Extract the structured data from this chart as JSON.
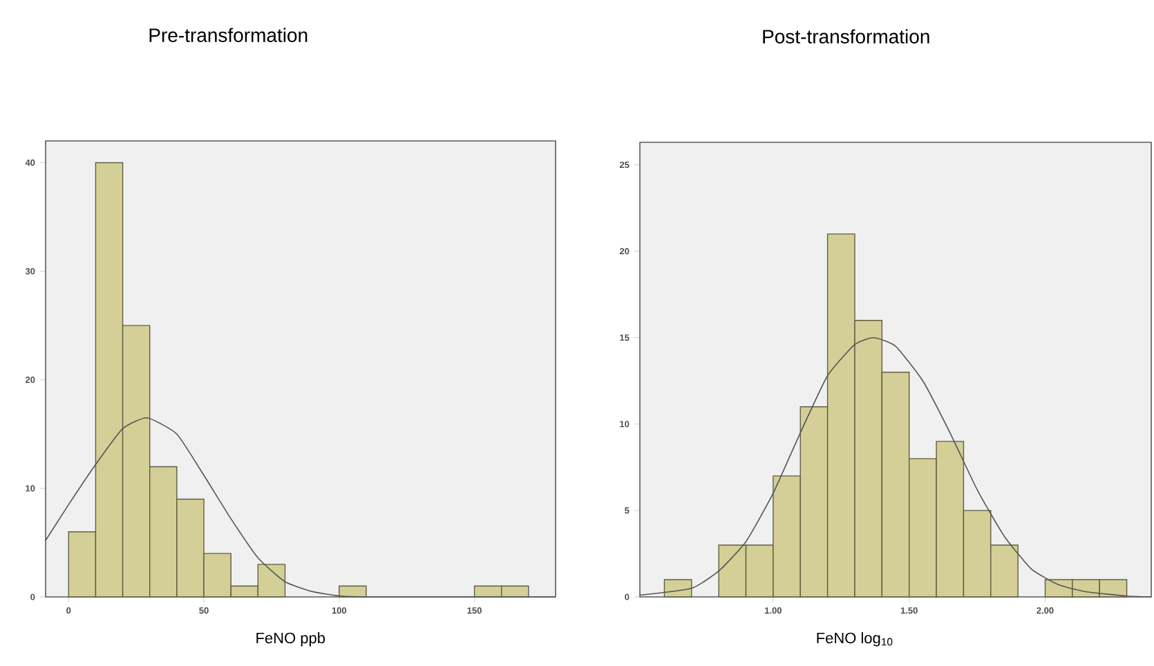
{
  "chart_data": [
    {
      "type": "histogram",
      "title": "Pre-transformation",
      "xlabel": "FeNO ppb",
      "xlim": [
        -8.5,
        180
      ],
      "ylim": [
        0,
        42
      ],
      "xticks": [
        0,
        50,
        100,
        150
      ],
      "yticks": [
        0,
        10,
        20,
        30,
        40
      ],
      "series": [
        {
          "color": "#d3cf96",
          "bins": [
            0,
            10,
            20,
            30,
            40,
            50,
            60,
            70,
            80,
            90,
            100,
            110,
            120,
            130,
            140,
            150,
            160,
            170
          ],
          "values": [
            6,
            40,
            25,
            12,
            9,
            4,
            1,
            3,
            0,
            0,
            1,
            0,
            0,
            0,
            0,
            1,
            1
          ]
        },
        {
          "type": "line",
          "color": "#555555",
          "x": [
            -8.5,
            0,
            10,
            20,
            29,
            40,
            50,
            60,
            70,
            80,
            90,
            100,
            110,
            180
          ],
          "values": [
            5.2,
            8.5,
            12.2,
            15.5,
            16.5,
            15,
            11.2,
            7.2,
            3.6,
            1.4,
            0.5,
            0.1,
            0,
            0
          ]
        }
      ]
    },
    {
      "type": "histogram",
      "title": "Post-transformation",
      "xlabel": "FeNO log$_{10}$",
      "xlim": [
        0.51,
        2.39
      ],
      "ylim": [
        0,
        26.3
      ],
      "xticks": [
        {
          "value": 1,
          "label": "1.00"
        },
        {
          "value": 1.5,
          "label": "1.50"
        },
        {
          "value": 2,
          "label": "2.00"
        }
      ],
      "yticks": [
        0,
        5,
        10,
        15,
        20,
        25
      ],
      "series": [
        {
          "color": "#d3cf96",
          "bins": [
            0.6,
            0.7,
            0.8,
            0.9,
            1.0,
            1.1,
            1.2,
            1.3,
            1.4,
            1.5,
            1.6,
            1.7,
            1.8,
            1.9,
            2.0,
            2.1,
            2.2,
            2.3
          ],
          "values": [
            1,
            0,
            3,
            3,
            7,
            11,
            21,
            16,
            13,
            8,
            9,
            5,
            3,
            0,
            1,
            1,
            1
          ]
        },
        {
          "type": "line",
          "color": "#555555",
          "x": [
            0.51,
            0.7,
            0.8,
            0.9,
            1.0,
            1.1,
            1.2,
            1.3,
            1.37,
            1.45,
            1.55,
            1.65,
            1.75,
            1.85,
            1.95,
            2.05,
            2.15,
            2.3,
            2.39
          ],
          "values": [
            0.1,
            0.5,
            1.5,
            3.2,
            6,
            9.5,
            12.8,
            14.6,
            15,
            14.5,
            12.5,
            9.5,
            6.2,
            3.5,
            1.6,
            0.7,
            0.3,
            0.05,
            0
          ]
        }
      ]
    }
  ]
}
